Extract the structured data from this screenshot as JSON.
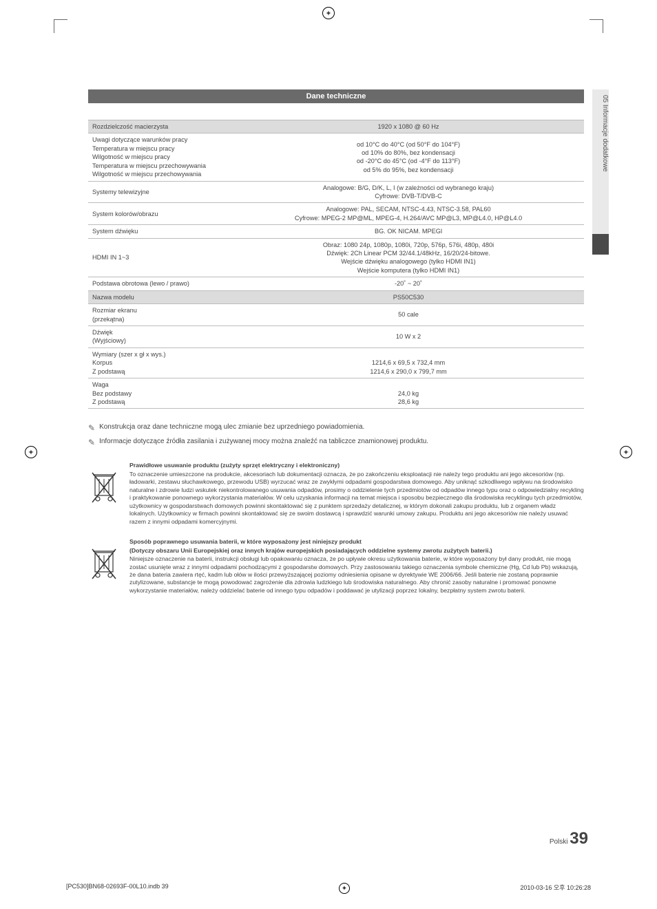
{
  "section_title": "Dane techniczne",
  "side_tab": "05   Informacje dodatkowe",
  "spec": {
    "rows": [
      {
        "type": "hdr",
        "label": "Rozdzielczość macierzysta",
        "value": "1920 x 1080 @ 60 Hz"
      },
      {
        "type": "row",
        "label": "Uwagi dotyczące warunków pracy\nTemperatura w miejscu pracy\nWilgotność w miejscu pracy\nTemperatura w miejscu przechowywania\nWilgotność w miejscu przechowywania",
        "value": "od 10°C do 40°C (od 50°F do 104°F)\nod 10% do 80%, bez kondensacji\nod -20°C do 45°C (od -4°F do 113°F)\nod 5% do 95%, bez kondensacji"
      },
      {
        "type": "row",
        "label": "Systemy telewizyjne",
        "value": "Analogowe: B/G, D/K, L, I (w zależności od wybranego kraju)\nCyfrowe: DVB-T/DVB-C"
      },
      {
        "type": "row",
        "label": "System kolorów/obrazu",
        "value": "Analogowe: PAL, SECAM, NTSC-4.43, NTSC-3.58, PAL60\nCyfrowe: MPEG-2 MP@ML, MPEG-4, H.264/AVC MP@L3, MP@L4.0, HP@L4.0"
      },
      {
        "type": "row",
        "label": "System dźwięku",
        "value": "BG. OK NICAM. MPEGl"
      },
      {
        "type": "row",
        "label": "HDMI IN 1~3",
        "value": "Obraz: 1080 24p, 1080p, 1080i, 720p, 576p, 576i, 480p, 480i\nDźwięk: 2Ch Linear PCM 32/44.1/48kHz, 16/20/24-bitowe.\nWejście dźwięku analogowego (tylko HDMI IN1)\nWejście komputera (tylko HDMI IN1)"
      },
      {
        "type": "row",
        "label": "Podstawa obrotowa (lewo / prawo)",
        "value": "-20˚ ~ 20˚"
      },
      {
        "type": "hdr",
        "label": "Nazwa modelu",
        "value": "PS50C530"
      },
      {
        "type": "row",
        "label": "Rozmiar ekranu\n(przekątna)",
        "value": "50 cale"
      },
      {
        "type": "row",
        "label": "Dźwięk\n(Wyjściowy)",
        "value": "10 W x 2"
      },
      {
        "type": "row",
        "label": "Wymiary (szer x gł x wys.)\nKorpus\nZ podstawą",
        "value": "\n1214,6 x 69,5 x 732,4 mm\n1214,6 x 290,0 x 799,7 mm"
      },
      {
        "type": "row",
        "label": "Waga\nBez podstawy\nZ podstawą",
        "value": "\n24,0 kg\n28,6 kg"
      }
    ]
  },
  "notes": {
    "line1": "Konstrukcja oraz dane techniczne mogą ulec zmianie bez uprzedniego powiadomienia.",
    "line2": "Informacje dotyczące źródła zasilania i zużywanej mocy można znaleźć na tabliczce znamionowej produktu."
  },
  "disposal1": {
    "title": "Prawidłowe usuwanie produktu (zużyty sprzęt elektryczny i elektroniczny)",
    "body": "To oznaczenie umieszczone na produkcie, akcesoriach lub dokumentacji oznacza, że po zakończeniu eksploatacji nie należy tego produktu ani jego akcesoriów (np. ładowarki, zestawu słuchawkowego, przewodu USB) wyrzucać wraz ze zwykłymi odpadami gospodarstwa domowego. Aby uniknąć szkodliwego wpływu na środowisko naturalne i zdrowie ludzi wskutek niekontrolowanego usuwania odpadów, prosimy o oddzielenie tych przedmiotów od odpadów innego typu oraz o odpowiedzialny recykling i praktykowanie ponownego wykorzystania materiałów. W celu uzyskania informacji na temat miejsca i sposobu bezpiecznego dla środowiska recyklingu tych przedmiotów, użytkownicy w gospodarstwach domowych powinni skontaktować się z punktem sprzedaży detalicznej, w którym dokonali zakupu produktu, lub z organem władz lokalnych. Użytkownicy w firmach powinni skontaktować się ze swoim dostawcą i sprawdzić warunki umowy zakupu. Produktu ani jego akcesoriów nie należy usuwać razem z innymi odpadami komercyjnymi."
  },
  "disposal2": {
    "title": "Sposób poprawnego usuwania baterii, w które wyposażony jest niniejszy produkt",
    "subtitle": "(Dotyczy obszaru Unii Europejskiej oraz innych krajów europejskich posiadających oddzielne systemy zwrotu zużytych baterii.)",
    "body": "Niniejsze oznaczenie na baterii, instrukcji obsługi lub opakowaniu oznacza, że po upływie okresu użytkowania baterie, w które wyposażony był dany produkt, nie mogą zostać usunięte wraz z innymi odpadami pochodzącymi z gospodarstw domowych. Przy zastosowaniu takiego oznaczenia symbole chemiczne (Hg, Cd lub Pb) wskazują, że dana bateria zawiera rtęć, kadm lub ołów w ilości przewyższającej poziomy odniesienia opisane w dyrektywie WE 2006/66. Jeśli baterie nie zostaną poprawnie zutylizowane, substancje te mogą powodować zagrożenie dla zdrowia ludzkiego lub środowiska naturalnego. Aby chronić zasoby naturalne i promować ponowne wykorzystanie materiałów, należy oddzielać baterie od innego typu odpadów i poddawać je utylizacji poprzez lokalny, bezpłatny system zwrotu baterii."
  },
  "footer": {
    "lang": "Polski",
    "page": "39",
    "file": "[PC530]BN68-02693F-00L10.indb   39",
    "timestamp": "2010-03-16   오후 10:26:28"
  },
  "colors": {
    "header_bg": "#6a6a6a",
    "hdr_row_bg": "#dcdcdc",
    "border": "#bbbbbb",
    "sidetab_bg": "#e9e9e9",
    "sidetab_dark": "#4a4a4a"
  }
}
